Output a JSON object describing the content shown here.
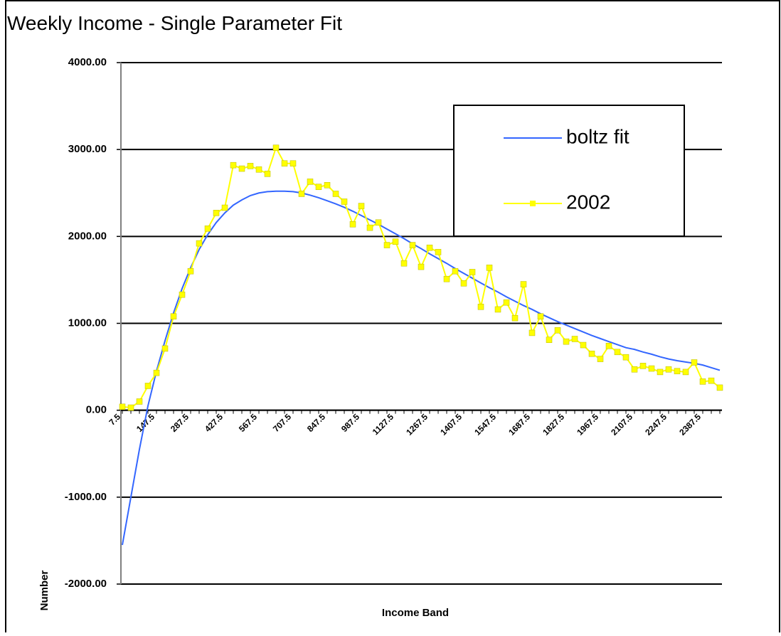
{
  "chart_data": {
    "type": "line",
    "title": "Weekly Income - Single Parameter Fit",
    "x_label": "Income Band",
    "y_label": "Number",
    "categories": [
      "7.5",
      null,
      null,
      null,
      "147.5",
      null,
      null,
      null,
      "287.5",
      null,
      null,
      null,
      "427.5",
      null,
      null,
      null,
      "567.5",
      null,
      null,
      null,
      "707.5",
      null,
      null,
      null,
      "847.5",
      null,
      null,
      null,
      "987.5",
      null,
      null,
      null,
      "1127.5",
      null,
      null,
      null,
      "1267.5",
      null,
      null,
      null,
      "1407.5",
      null,
      null,
      null,
      "1547.5",
      null,
      null,
      null,
      "1687.5",
      null,
      null,
      null,
      "1827.5",
      null,
      null,
      null,
      "1967.5",
      null,
      null,
      null,
      "2107.5",
      null,
      null,
      null,
      "2247.5",
      null,
      null,
      null,
      "2387.5",
      null,
      null
    ],
    "series": [
      {
        "name": "boltz fit",
        "color": "#3366ff",
        "marker": false,
        "values": [
          -1550,
          -1000,
          -450,
          50,
          450,
          800,
          1120,
          1400,
          1640,
          1850,
          2020,
          2160,
          2270,
          2360,
          2420,
          2470,
          2500,
          2515,
          2520,
          2520,
          2515,
          2500,
          2475,
          2445,
          2410,
          2375,
          2335,
          2290,
          2240,
          2190,
          2140,
          2085,
          2030,
          1975,
          1915,
          1860,
          1800,
          1745,
          1690,
          1630,
          1575,
          1520,
          1465,
          1410,
          1360,
          1305,
          1255,
          1205,
          1160,
          1110,
          1065,
          1020,
          980,
          940,
          900,
          860,
          825,
          790,
          755,
          720,
          700,
          670,
          645,
          615,
          590,
          570,
          555,
          540,
          520,
          490,
          460
        ]
      },
      {
        "name": "2002",
        "color": "#ffff00",
        "marker": true,
        "values": [
          40,
          30,
          100,
          280,
          430,
          710,
          1080,
          1330,
          1600,
          1920,
          2090,
          2270,
          2330,
          2820,
          2780,
          2810,
          2770,
          2720,
          3020,
          2840,
          2840,
          2490,
          2630,
          2570,
          2590,
          2490,
          2400,
          2140,
          2350,
          2100,
          2160,
          1900,
          1940,
          1690,
          1900,
          1650,
          1870,
          1820,
          1510,
          1600,
          1460,
          1590,
          1190,
          1640,
          1160,
          1240,
          1060,
          1450,
          890,
          1080,
          810,
          920,
          790,
          820,
          750,
          650,
          590,
          740,
          670,
          610,
          470,
          510,
          480,
          440,
          470,
          450,
          440,
          550,
          330,
          340,
          260
        ]
      }
    ],
    "ylim": [
      -2000,
      4000
    ],
    "yticks": [
      {
        "value": -2000,
        "label": "-2000.00"
      },
      {
        "value": -1000,
        "label": "-1000.00"
      },
      {
        "value": 0,
        "label": "0.00"
      },
      {
        "value": 1000,
        "label": "1000.00"
      },
      {
        "value": 2000,
        "label": "2000.00"
      },
      {
        "value": 3000,
        "label": "3000.00"
      },
      {
        "value": 4000,
        "label": "4000.00"
      }
    ],
    "grid": true,
    "legend": "top-right"
  }
}
